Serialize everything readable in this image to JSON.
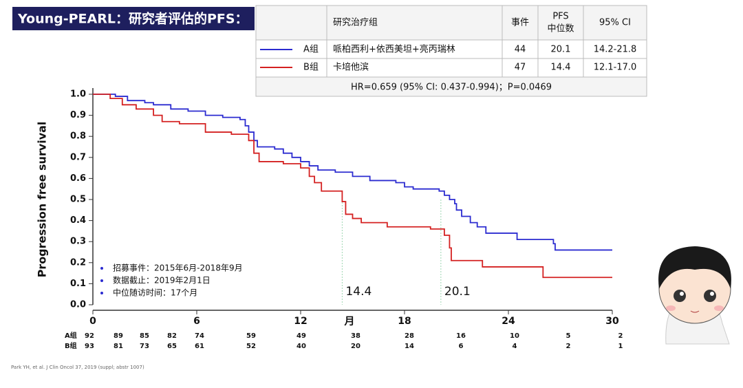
{
  "banner": "Young-PEARL：研究者评估的PFS：",
  "table": {
    "header": {
      "group": "研究治疗组",
      "events": "事件",
      "median": [
        "PFS",
        "中位数"
      ],
      "ci": "95% CI"
    },
    "rows": [
      {
        "treatment": "哌柏西利+依西美坦+亮丙瑞林",
        "events": 44,
        "median": 20.1,
        "ci": "14.2-21.8"
      },
      {
        "treatment": "卡培他滨",
        "events": 47,
        "median": 14.4,
        "ci": "12.1-17.0"
      }
    ],
    "footer": "HR=0.659 (95% CI: 0.437-0.994)；P=0.0469"
  },
  "chart_data": {
    "type": "step",
    "y_label": "Progression free survival",
    "x_label": "月",
    "xlim": [
      0,
      30
    ],
    "xticks": [
      0,
      6,
      12,
      18,
      24,
      30
    ],
    "ylim": [
      0,
      1
    ],
    "yticks": [
      {
        "value": 0,
        "label": "0.0"
      },
      {
        "value": 0.1,
        "label": "0.1"
      },
      {
        "value": 0.2,
        "label": "0.2"
      },
      {
        "value": 0.3,
        "label": "0.3"
      },
      {
        "value": 0.4,
        "label": "0.4"
      },
      {
        "value": 0.5,
        "label": "0.5"
      },
      {
        "value": 0.6,
        "label": "0.6"
      },
      {
        "value": 0.7,
        "label": "0.7"
      },
      {
        "value": 0.8,
        "label": "0.8"
      },
      {
        "value": 0.9,
        "label": "0.9"
      },
      {
        "value": 1,
        "label": "1.0"
      }
    ],
    "series": [
      {
        "name": "A组",
        "color": "#2b2bd0",
        "x": [
          0,
          1.3,
          2,
          3,
          3.5,
          4.5,
          5.5,
          6.5,
          7.5,
          8.5,
          8.8,
          9,
          9.3,
          9.5,
          10.5,
          11,
          11.5,
          12,
          12.5,
          13,
          14,
          15,
          16,
          17.5,
          18,
          18.5,
          20,
          20.3,
          20.6,
          20.9,
          21,
          21.3,
          21.8,
          22.2,
          22.7,
          24.5,
          26.6,
          26.7,
          30
        ],
        "values": [
          1,
          0.99,
          0.97,
          0.96,
          0.95,
          0.93,
          0.92,
          0.9,
          0.89,
          0.88,
          0.85,
          0.82,
          0.78,
          0.75,
          0.74,
          0.72,
          0.7,
          0.68,
          0.66,
          0.64,
          0.63,
          0.61,
          0.59,
          0.58,
          0.56,
          0.55,
          0.54,
          0.52,
          0.5,
          0.48,
          0.45,
          0.42,
          0.39,
          0.37,
          0.34,
          0.31,
          0.29,
          0.26,
          0.26
        ]
      },
      {
        "name": "B组",
        "color": "#d42020",
        "x": [
          0,
          1,
          1.7,
          2.5,
          3.5,
          4,
          5,
          6.5,
          8,
          9,
          9.3,
          9.6,
          11,
          12,
          12.5,
          12.8,
          13.2,
          14.4,
          14.6,
          15,
          15.5,
          17,
          19.5,
          20.3,
          20.6,
          20.7,
          22.5,
          26,
          30
        ],
        "values": [
          1,
          0.98,
          0.95,
          0.93,
          0.9,
          0.87,
          0.86,
          0.82,
          0.81,
          0.78,
          0.72,
          0.68,
          0.67,
          0.65,
          0.61,
          0.58,
          0.54,
          0.49,
          0.43,
          0.41,
          0.39,
          0.37,
          0.36,
          0.33,
          0.27,
          0.21,
          0.18,
          0.13,
          0.13
        ]
      }
    ],
    "medians": [
      14.4,
      20.1
    ],
    "notes": [
      "招募事件：2015年6月-2018年9月",
      "数据截止：2019年2月1日",
      "中位随访时间：17个月"
    ],
    "at_risk": [
      [
        92,
        89,
        85,
        82,
        74,
        59,
        49,
        38,
        28,
        16,
        10,
        5,
        2
      ],
      [
        93,
        81,
        73,
        65,
        61,
        52,
        40,
        20,
        14,
        6,
        4,
        2,
        1
      ]
    ]
  },
  "citation": "Park YH, et al. J Clin Oncol 37, 2019 (suppl; abstr 1007)"
}
